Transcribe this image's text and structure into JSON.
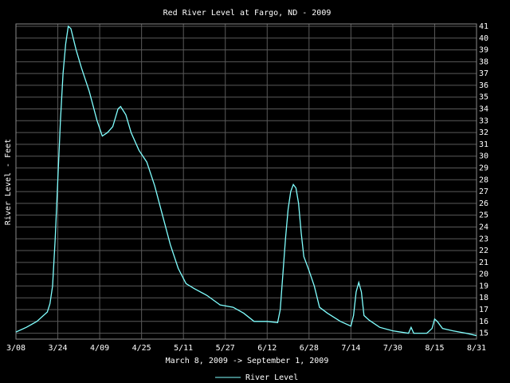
{
  "chart_data": {
    "type": "line",
    "title": "Red River Level at Fargo, ND - 2009",
    "x_label": "March 8, 2009 -> September 1, 2009",
    "y_label": "River Level - Feet",
    "x": [
      "2009-03-08",
      "2009-03-12",
      "2009-03-16",
      "2009-03-20",
      "2009-03-21",
      "2009-03-22",
      "2009-03-23",
      "2009-03-24",
      "2009-03-25",
      "2009-03-26",
      "2009-03-27",
      "2009-03-28",
      "2009-03-29",
      "2009-03-31",
      "2009-04-02",
      "2009-04-05",
      "2009-04-08",
      "2009-04-10",
      "2009-04-12",
      "2009-04-14",
      "2009-04-16",
      "2009-04-17",
      "2009-04-19",
      "2009-04-21",
      "2009-04-24",
      "2009-04-27",
      "2009-04-30",
      "2009-05-03",
      "2009-05-06",
      "2009-05-09",
      "2009-05-12",
      "2009-05-15",
      "2009-05-20",
      "2009-05-25",
      "2009-05-30",
      "2009-06-03",
      "2009-06-07",
      "2009-06-12",
      "2009-06-16",
      "2009-06-17",
      "2009-06-18",
      "2009-06-19",
      "2009-06-20",
      "2009-06-21",
      "2009-06-22",
      "2009-06-23",
      "2009-06-24",
      "2009-06-25",
      "2009-06-26",
      "2009-06-28",
      "2009-06-30",
      "2009-07-02",
      "2009-07-05",
      "2009-07-10",
      "2009-07-14",
      "2009-07-15",
      "2009-07-16",
      "2009-07-17",
      "2009-07-18",
      "2009-07-19",
      "2009-07-21",
      "2009-07-25",
      "2009-07-30",
      "2009-08-05",
      "2009-08-06",
      "2009-08-07",
      "2009-08-12",
      "2009-08-14",
      "2009-08-15",
      "2009-08-16",
      "2009-08-18",
      "2009-08-22",
      "2009-08-27",
      "2009-08-31"
    ],
    "series": [
      {
        "name": "River Level",
        "color": "#80ffff",
        "values": [
          15.1,
          15.5,
          16.0,
          16.8,
          17.5,
          19,
          23,
          28,
          33,
          37,
          39.5,
          41,
          40.8,
          39,
          37.5,
          35.5,
          33,
          31.7,
          32,
          32.5,
          34,
          34.2,
          33.5,
          32,
          30.5,
          29.5,
          27.5,
          25,
          22.5,
          20.5,
          19.2,
          18.8,
          18.2,
          17.4,
          17.2,
          16.7,
          16.0,
          16.0,
          15.9,
          17,
          20,
          23,
          25.5,
          27,
          27.6,
          27.3,
          26,
          23.5,
          21.5,
          20.3,
          19,
          17.2,
          16.7,
          16.0,
          15.6,
          16.5,
          18.5,
          19.3,
          18.5,
          16.5,
          16.1,
          15.5,
          15.2,
          15.0,
          15.5,
          15.0,
          15.0,
          15.4,
          16.2,
          16.0,
          15.4,
          15.2,
          15.0,
          14.8
        ]
      }
    ],
    "xlim": [
      "2009-03-08",
      "2009-08-31"
    ],
    "xticks": [
      {
        "value": "2009-03-08",
        "label": "3/08"
      },
      {
        "value": "2009-03-24",
        "label": "3/24"
      },
      {
        "value": "2009-04-09",
        "label": "4/09"
      },
      {
        "value": "2009-04-25",
        "label": "4/25"
      },
      {
        "value": "2009-05-11",
        "label": "5/11"
      },
      {
        "value": "2009-05-27",
        "label": "5/27"
      },
      {
        "value": "2009-06-12",
        "label": "6/12"
      },
      {
        "value": "2009-06-28",
        "label": "6/28"
      },
      {
        "value": "2009-07-14",
        "label": "7/14"
      },
      {
        "value": "2009-07-30",
        "label": "7/30"
      },
      {
        "value": "2009-08-15",
        "label": "8/15"
      },
      {
        "value": "2009-08-31",
        "label": "8/31"
      }
    ],
    "ylim": [
      14.5,
      41.2
    ],
    "yticks": [
      15,
      16,
      17,
      18,
      19,
      20,
      21,
      22,
      23,
      24,
      25,
      26,
      27,
      28,
      29,
      30,
      31,
      32,
      33,
      34,
      35,
      36,
      37,
      38,
      39,
      40,
      41
    ],
    "grid": true,
    "legend": "bottom"
  }
}
